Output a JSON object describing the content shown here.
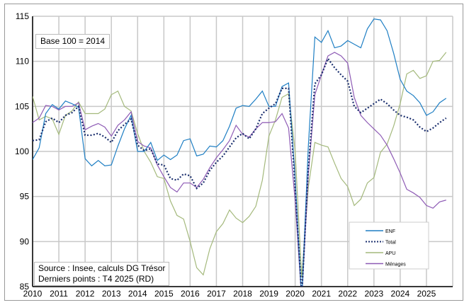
{
  "chart_data": {
    "type": "line",
    "title": "",
    "xlabel": "",
    "ylabel": "",
    "annotations": {
      "base": "Base 100 = 2014",
      "source": "Source : Insee, calculs DG Trésor",
      "last_points": "Derniers points : T4 2025 (RD)"
    },
    "ylim": [
      85,
      115
    ],
    "yticks": [
      "85",
      "90",
      "95",
      "100",
      "105",
      "110",
      "115"
    ],
    "xlim": [
      "2010",
      "2026"
    ],
    "xticks": [
      "2010",
      "2011",
      "2012",
      "2013",
      "2014",
      "2015",
      "2016",
      "2017",
      "2018",
      "2019",
      "2020",
      "2021",
      "2022",
      "2023",
      "2024",
      "2025"
    ],
    "frequency": "quarterly",
    "start": "2010 Q1",
    "grid": true,
    "legend_position": "bottom-right",
    "series": [
      {
        "name": "ENF",
        "color": "#1f7fc4",
        "style": "solid",
        "values": [
          99.1,
          100.4,
          104.2,
          105.2,
          104.7,
          105.6,
          105.3,
          104.9,
          99.2,
          98.4,
          99.0,
          98.4,
          98.5,
          100.6,
          102.5,
          104.0,
          100.0,
          100.0,
          101.0,
          99.0,
          99.6,
          99.1,
          99.6,
          101.2,
          101.4,
          99.5,
          99.7,
          100.6,
          100.5,
          101.2,
          102.8,
          104.8,
          105.1,
          105.0,
          105.8,
          106.7,
          105.0,
          105.0,
          107.2,
          107.6,
          97.0,
          83.5,
          100.5,
          112.7,
          112.1,
          113.4,
          111.5,
          111.7,
          112.3,
          111.9,
          111.5,
          113.6,
          114.7,
          114.6,
          113.4,
          110.9,
          108.0,
          106.7,
          106.2,
          105.4,
          104.0,
          104.4,
          105.4,
          105.9
        ]
      },
      {
        "name": "Total",
        "color": "#1b2f6e",
        "style": "dotted",
        "values": [
          101.2,
          101.3,
          103.3,
          103.7,
          103.2,
          104.0,
          104.3,
          105.0,
          101.8,
          101.8,
          102.0,
          101.6,
          101.0,
          102.3,
          103.0,
          103.6,
          100.7,
          100.1,
          100.3,
          98.6,
          98.5,
          97.0,
          96.8,
          97.5,
          97.3,
          95.9,
          96.5,
          97.9,
          98.8,
          99.5,
          100.5,
          101.5,
          102.0,
          101.4,
          102.5,
          104.2,
          104.8,
          105.3,
          107.0,
          107.0,
          96.0,
          84.0,
          98.0,
          107.5,
          108.5,
          110.3,
          109.3,
          108.5,
          107.8,
          105.0,
          104.3,
          104.8,
          105.3,
          105.8,
          105.3,
          104.6,
          104.0,
          103.8,
          103.5,
          102.7,
          102.2,
          102.6,
          103.2,
          103.7
        ]
      },
      {
        "name": "APU",
        "color": "#a4b97c",
        "style": "solid",
        "values": [
          106.1,
          103.5,
          103.9,
          103.6,
          101.9,
          104.0,
          104.5,
          105.5,
          104.2,
          104.2,
          104.2,
          104.7,
          106.3,
          106.7,
          105.0,
          104.5,
          102.0,
          100.0,
          98.8,
          97.2,
          97.0,
          94.5,
          92.9,
          92.5,
          90.0,
          87.1,
          86.3,
          89.2,
          91.1,
          92.0,
          93.5,
          92.6,
          92.1,
          92.8,
          93.9,
          96.8,
          101.7,
          103.5,
          106.0,
          106.4,
          100.0,
          86.0,
          96.0,
          101.0,
          100.7,
          100.5,
          98.7,
          97.0,
          96.1,
          94.0,
          94.7,
          96.5,
          97.1,
          99.9,
          100.8,
          102.8,
          105.3,
          108.6,
          109.0,
          108.1,
          108.4,
          110.0,
          110.1,
          111.0
        ]
      },
      {
        "name": "Ménages",
        "color": "#8e5bb5",
        "style": "solid",
        "values": [
          103.2,
          103.7,
          105.1,
          105.0,
          104.6,
          105.0,
          105.0,
          105.4,
          102.4,
          102.8,
          103.1,
          102.7,
          101.7,
          102.9,
          103.5,
          104.4,
          101.1,
          100.6,
          100.4,
          98.5,
          97.2,
          96.0,
          95.5,
          96.5,
          96.5,
          96.0,
          96.9,
          98.2,
          99.3,
          100.2,
          101.2,
          102.9,
          101.9,
          101.6,
          102.5,
          103.2,
          103.2,
          103.3,
          104.2,
          102.6,
          94.5,
          83.5,
          97.4,
          106.3,
          108.5,
          110.6,
          111.0,
          110.6,
          109.8,
          106.0,
          104.0,
          103.2,
          102.5,
          101.8,
          100.7,
          99.2,
          97.6,
          95.8,
          95.4,
          94.9,
          94.0,
          93.7,
          94.4,
          94.6
        ]
      }
    ]
  }
}
